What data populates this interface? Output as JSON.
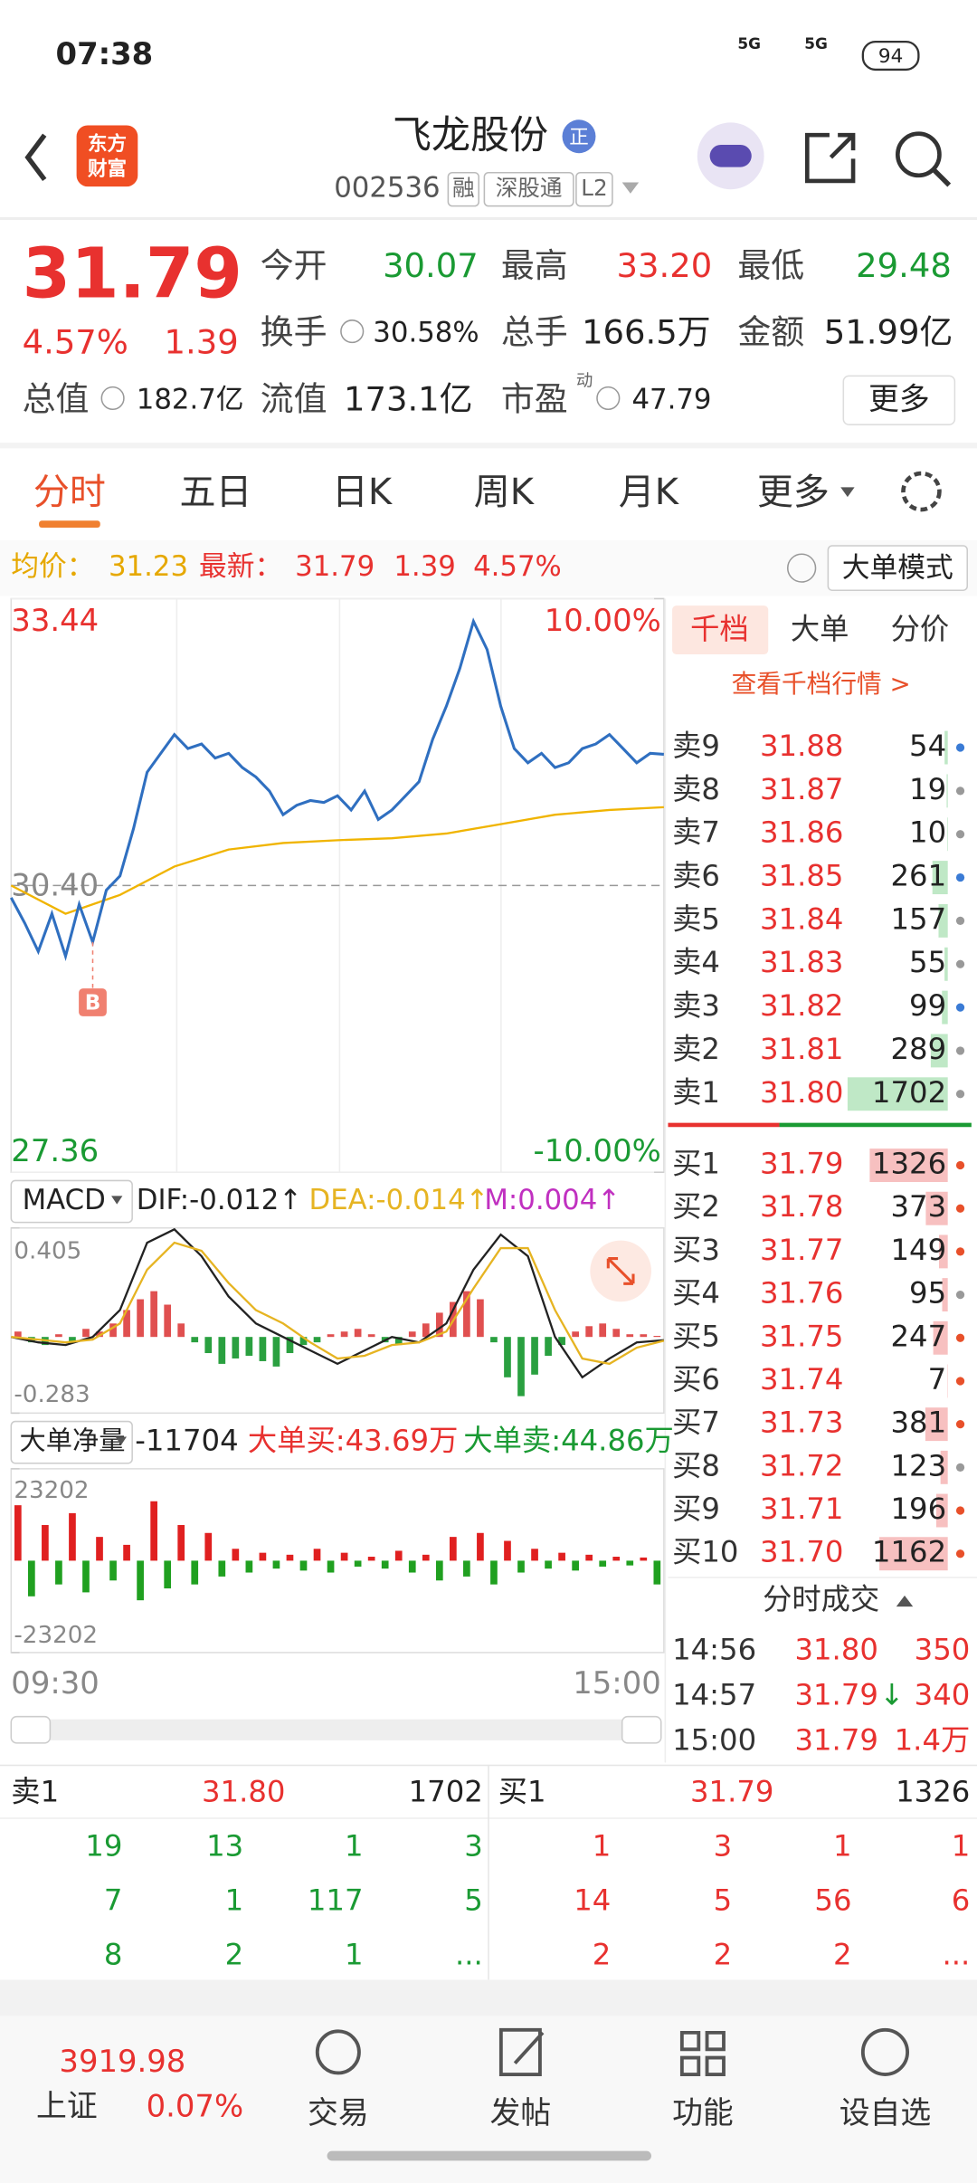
{
  "status_bar": {
    "time": "07:38",
    "network": [
      "5G",
      "5G"
    ],
    "battery": "94"
  },
  "header": {
    "logo": [
      "东方",
      "财富"
    ],
    "name": "飞龙股份",
    "badge": "正",
    "code": "002536",
    "tags": [
      "融",
      "深股通",
      "L2"
    ]
  },
  "quote": {
    "price": "31.79",
    "change_pct": "4.57%",
    "change": "1.39",
    "fields": [
      {
        "label": "今开",
        "value": "30.07"
      },
      {
        "label": "最高",
        "value": "33.20"
      },
      {
        "label": "最低",
        "value": "29.48"
      },
      {
        "label": "换手",
        "value": "30.58%"
      },
      {
        "label": "总手",
        "value": "166.5万"
      },
      {
        "label": "金额",
        "value": "51.99亿"
      },
      {
        "label": "总值",
        "value": "182.7亿"
      },
      {
        "label": "流值",
        "value": "173.1亿"
      },
      {
        "label": "市盈",
        "sup": "动",
        "value": "47.79"
      }
    ],
    "more": "更多"
  },
  "tabs": [
    "分时",
    "五日",
    "日K",
    "周K",
    "月K",
    "更多"
  ],
  "info_bar": {
    "avg_label": "均价：",
    "avg": "31.23",
    "last_label": "最新：",
    "last": "31.79",
    "change": "1.39",
    "change_pct": "4.57%",
    "mode": "大单模式"
  },
  "price_chart": {
    "type": "line",
    "ylim": [
      27.36,
      33.44
    ],
    "yticks": [
      {
        "value": 33.44,
        "label": "33.44"
      },
      {
        "value": 30.4,
        "label": "30.40"
      },
      {
        "value": 27.36,
        "label": "27.36"
      }
    ],
    "y2lim": [
      -10,
      10
    ],
    "y2ticks": [
      {
        "value": 10,
        "label": "10.00%"
      },
      {
        "value": -10,
        "label": "-10.00%"
      }
    ],
    "x_labels": [
      "09:30",
      "15:00"
    ],
    "annotations": [
      {
        "text": "B"
      }
    ],
    "series": [
      {
        "color": "#2f6fc0",
        "values": [
          30.27,
          30.0,
          29.7,
          30.1,
          29.65,
          30.2,
          29.8,
          30.35,
          30.5,
          31.0,
          31.6,
          31.8,
          32.0,
          31.85,
          31.9,
          31.75,
          31.8,
          31.65,
          31.55,
          31.4,
          31.15,
          31.25,
          31.3,
          31.28,
          31.35,
          31.2,
          31.4,
          31.1,
          31.2,
          31.35,
          31.5,
          31.95,
          32.3,
          32.7,
          33.2,
          32.9,
          32.3,
          31.85,
          31.7,
          31.8,
          31.65,
          31.7,
          31.85,
          31.9,
          32.0,
          31.85,
          31.7,
          31.8,
          31.79
        ]
      },
      {
        "color": "#f0b400",
        "values": [
          30.4,
          30.1,
          30.3,
          30.6,
          30.78,
          30.85,
          30.88,
          30.9,
          30.95,
          31.05,
          31.15,
          31.2,
          31.23
        ]
      }
    ]
  },
  "macd": {
    "type": "bar",
    "label": "MACD",
    "dif": "DIF:-0.012↑",
    "dea": "DEA:-0.014↑",
    "m": "M:0.004↑",
    "ylim": [
      -0.283,
      0.405
    ],
    "yticks": [
      0.405,
      -0.283
    ],
    "values": [
      0.02,
      -0.02,
      -0.03,
      0.01,
      -0.02,
      0.03,
      0.02,
      0.05,
      0.1,
      0.14,
      0.17,
      0.12,
      0.05,
      -0.02,
      -0.06,
      -0.1,
      -0.08,
      -0.07,
      -0.09,
      -0.11,
      -0.06,
      -0.03,
      -0.02,
      0.01,
      0.02,
      0.03,
      0.01,
      -0.02,
      -0.03,
      0.02,
      0.05,
      0.09,
      0.13,
      0.17,
      0.14,
      -0.02,
      -0.15,
      -0.22,
      -0.14,
      -0.07,
      -0.03,
      0.02,
      0.04,
      0.05,
      0.03,
      0.01,
      0.01,
      0.004
    ],
    "series": [
      {
        "color": "#222222",
        "values": [
          0.0,
          -0.02,
          -0.03,
          0.0,
          0.1,
          0.35,
          0.4,
          0.3,
          0.15,
          0.05,
          0.0,
          -0.05,
          -0.1,
          -0.05,
          0.0,
          -0.02,
          0.05,
          0.25,
          0.38,
          0.3,
          0.0,
          -0.15,
          -0.08,
          -0.02,
          -0.012
        ]
      },
      {
        "color": "#e6b422",
        "values": [
          0.0,
          -0.01,
          -0.02,
          -0.01,
          0.05,
          0.25,
          0.35,
          0.32,
          0.2,
          0.1,
          0.05,
          -0.02,
          -0.08,
          -0.07,
          -0.03,
          -0.02,
          0.02,
          0.18,
          0.33,
          0.33,
          0.1,
          -0.08,
          -0.1,
          -0.04,
          -0.014
        ]
      }
    ]
  },
  "big_order": {
    "type": "bar",
    "label": "大单净量",
    "net": "-11704",
    "buy": "大单买:43.69万",
    "sell": "大单卖:44.86万",
    "ylim": [
      -23202,
      23202
    ],
    "yticks": [
      23202,
      -23202
    ],
    "values": [
      14000,
      -9000,
      9000,
      -6000,
      12000,
      -8000,
      6000,
      -5000,
      4000,
      -10000,
      15000,
      -7000,
      9000,
      -6000,
      7000,
      -4000,
      3000,
      -3000,
      2000,
      -2000,
      1500,
      -2500,
      3000,
      -3000,
      2000,
      -1500,
      1000,
      -2000,
      2500,
      -3000,
      1500,
      -5000,
      6000,
      -4000,
      7000,
      -6000,
      5000,
      -3000,
      3000,
      -2000,
      2000,
      -2500,
      1500,
      -1500,
      1000,
      -1200,
      800,
      -6000
    ]
  },
  "order_book": {
    "tabs": [
      "千档",
      "大单",
      "分价"
    ],
    "link": "查看千档行情 >",
    "asks": [
      {
        "name": "卖9",
        "price": "31.88",
        "volume": 54
      },
      {
        "name": "卖8",
        "price": "31.87",
        "volume": 19
      },
      {
        "name": "卖7",
        "price": "31.86",
        "volume": 10
      },
      {
        "name": "卖6",
        "price": "31.85",
        "volume": 261
      },
      {
        "name": "卖5",
        "price": "31.84",
        "volume": 157
      },
      {
        "name": "卖4",
        "price": "31.83",
        "volume": 55
      },
      {
        "name": "卖3",
        "price": "31.82",
        "volume": 99
      },
      {
        "name": "卖2",
        "price": "31.81",
        "volume": 289
      },
      {
        "name": "卖1",
        "price": "31.80",
        "volume": 1702
      }
    ],
    "bids": [
      {
        "name": "买1",
        "price": "31.79",
        "volume": 1326
      },
      {
        "name": "买2",
        "price": "31.78",
        "volume": 373
      },
      {
        "name": "买3",
        "price": "31.77",
        "volume": 149
      },
      {
        "name": "买4",
        "price": "31.76",
        "volume": 95
      },
      {
        "name": "买5",
        "price": "31.75",
        "volume": 247
      },
      {
        "name": "买6",
        "price": "31.74",
        "volume": 7
      },
      {
        "name": "买7",
        "price": "31.73",
        "volume": 381
      },
      {
        "name": "买8",
        "price": "31.72",
        "volume": 123
      },
      {
        "name": "买9",
        "price": "31.71",
        "volume": 196
      },
      {
        "name": "买10",
        "price": "31.70",
        "volume": 1162
      }
    ],
    "trades_title": "分时成交",
    "trades": [
      {
        "time": "14:56",
        "price": "31.80",
        "volume": "350"
      },
      {
        "time": "14:57",
        "price": "31.79",
        "arrow": "↓",
        "volume": "340"
      },
      {
        "time": "15:00",
        "price": "31.79",
        "volume": "1.4万"
      }
    ]
  },
  "queue": {
    "ask": {
      "label": "卖1",
      "price": "31.80",
      "volume": "1702",
      "orders": [
        [
          19,
          13,
          1,
          3
        ],
        [
          7,
          1,
          117,
          5
        ],
        [
          8,
          2,
          1,
          "..."
        ]
      ]
    },
    "bid": {
      "label": "买1",
      "price": "31.79",
      "volume": "1326",
      "orders": [
        [
          1,
          3,
          1,
          1
        ],
        [
          14,
          5,
          56,
          6
        ],
        [
          2,
          2,
          2,
          "..."
        ]
      ]
    }
  },
  "bottom_nav": {
    "index": {
      "value": "3919.98",
      "name": "上证",
      "change": "0.07%"
    },
    "items": [
      "交易",
      "发帖",
      "功能",
      "设自选"
    ]
  }
}
